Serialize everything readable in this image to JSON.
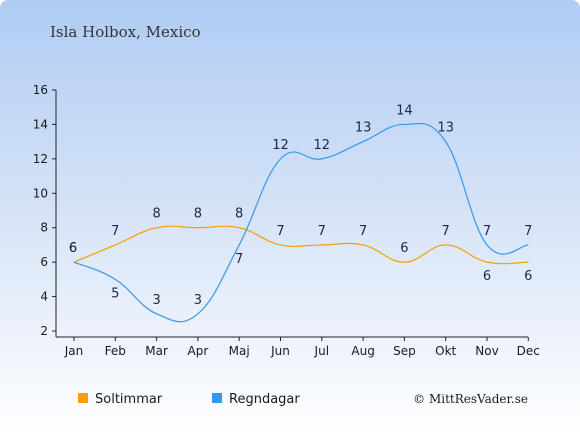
{
  "title": "Isla Holbox, Mexico",
  "credit": "© MittResVader.se",
  "chart_data": {
    "type": "line",
    "title": "Isla Holbox, Mexico",
    "xlabel": "",
    "ylabel": "",
    "categories": [
      "Jan",
      "Feb",
      "Mar",
      "Apr",
      "Maj",
      "Jun",
      "Jul",
      "Aug",
      "Sep",
      "Okt",
      "Nov",
      "Dec"
    ],
    "ylim": [
      2,
      16
    ],
    "yticks": [
      2,
      4,
      6,
      8,
      10,
      12,
      14,
      16
    ],
    "grid": false,
    "legend_position": "bottom",
    "series": [
      {
        "name": "Soltimmar",
        "color": "#f5a000",
        "values": [
          6,
          7,
          8,
          8,
          8,
          7,
          7,
          7,
          6,
          7,
          6,
          6
        ],
        "labels": [
          "6",
          "7",
          "8",
          "8",
          "8",
          "7",
          "7",
          "7",
          "6",
          "7",
          "6",
          "6"
        ]
      },
      {
        "name": "Regndagar",
        "color": "#3399ee",
        "values": [
          6,
          5,
          3,
          3,
          7,
          12,
          12,
          13,
          14,
          13,
          7,
          7
        ],
        "labels": [
          "6",
          "5",
          "3",
          "3",
          "7",
          "12",
          "12",
          "13",
          "14",
          "13",
          "7",
          "7"
        ]
      }
    ]
  }
}
